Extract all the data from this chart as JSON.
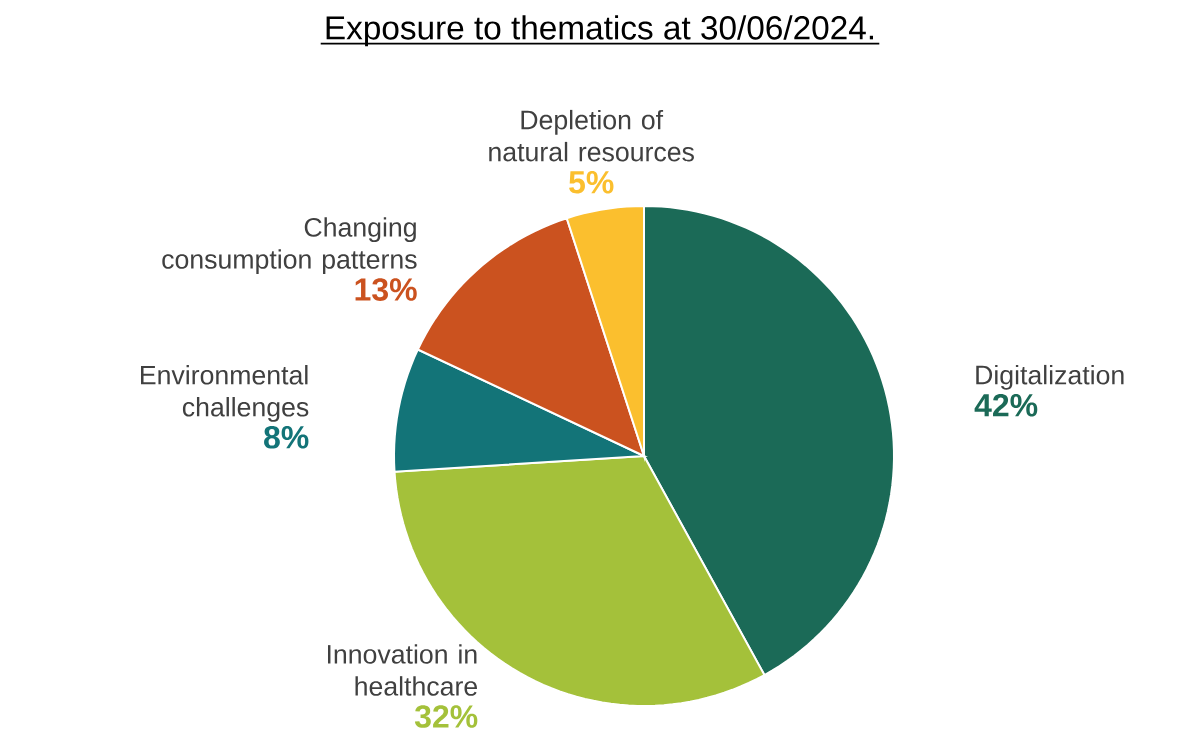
{
  "chart_data": {
    "type": "pie",
    "title": "Exposure to thematics at 30/06/2024.",
    "categories": [
      "Digitalization",
      "Innovation in healthcare",
      "Environmental challenges",
      "Changing consumption patterns",
      "Depletion of natural resources"
    ],
    "values": [
      42,
      32,
      8,
      13,
      5
    ],
    "value_labels": [
      "42%",
      "32%",
      "8%",
      "13%",
      "5%"
    ],
    "colors": [
      "#1b6a57",
      "#a4c13a",
      "#137478",
      "#cb521f",
      "#fbbf2e"
    ],
    "legend": false
  }
}
